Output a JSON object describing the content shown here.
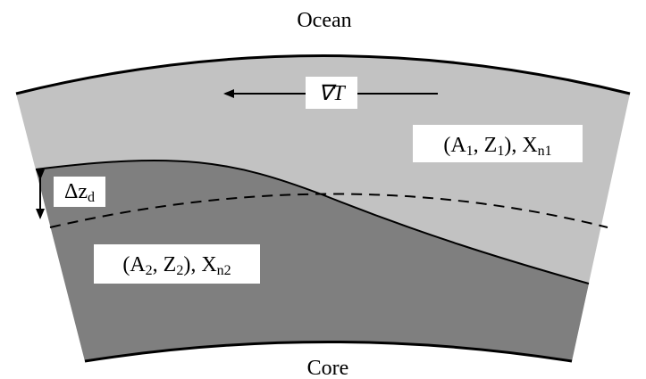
{
  "labels": {
    "ocean": "Ocean",
    "core": "Core",
    "gradient": [
      {
        "text": "∇T"
      }
    ],
    "layer1": [
      {
        "text": "(A"
      },
      {
        "text": "1",
        "sub": true
      },
      {
        "text": ", Z"
      },
      {
        "text": "1",
        "sub": true
      },
      {
        "text": "), X"
      },
      {
        "text": "n1",
        "sub": true
      }
    ],
    "delta": [
      {
        "text": "Δz"
      },
      {
        "text": "d",
        "sub": true
      }
    ],
    "layer2": [
      {
        "text": "(A"
      },
      {
        "text": "2",
        "sub": true
      },
      {
        "text": ", Z"
      },
      {
        "text": "2",
        "sub": true
      },
      {
        "text": "), X"
      },
      {
        "text": "n2",
        "sub": true
      }
    ]
  }
}
